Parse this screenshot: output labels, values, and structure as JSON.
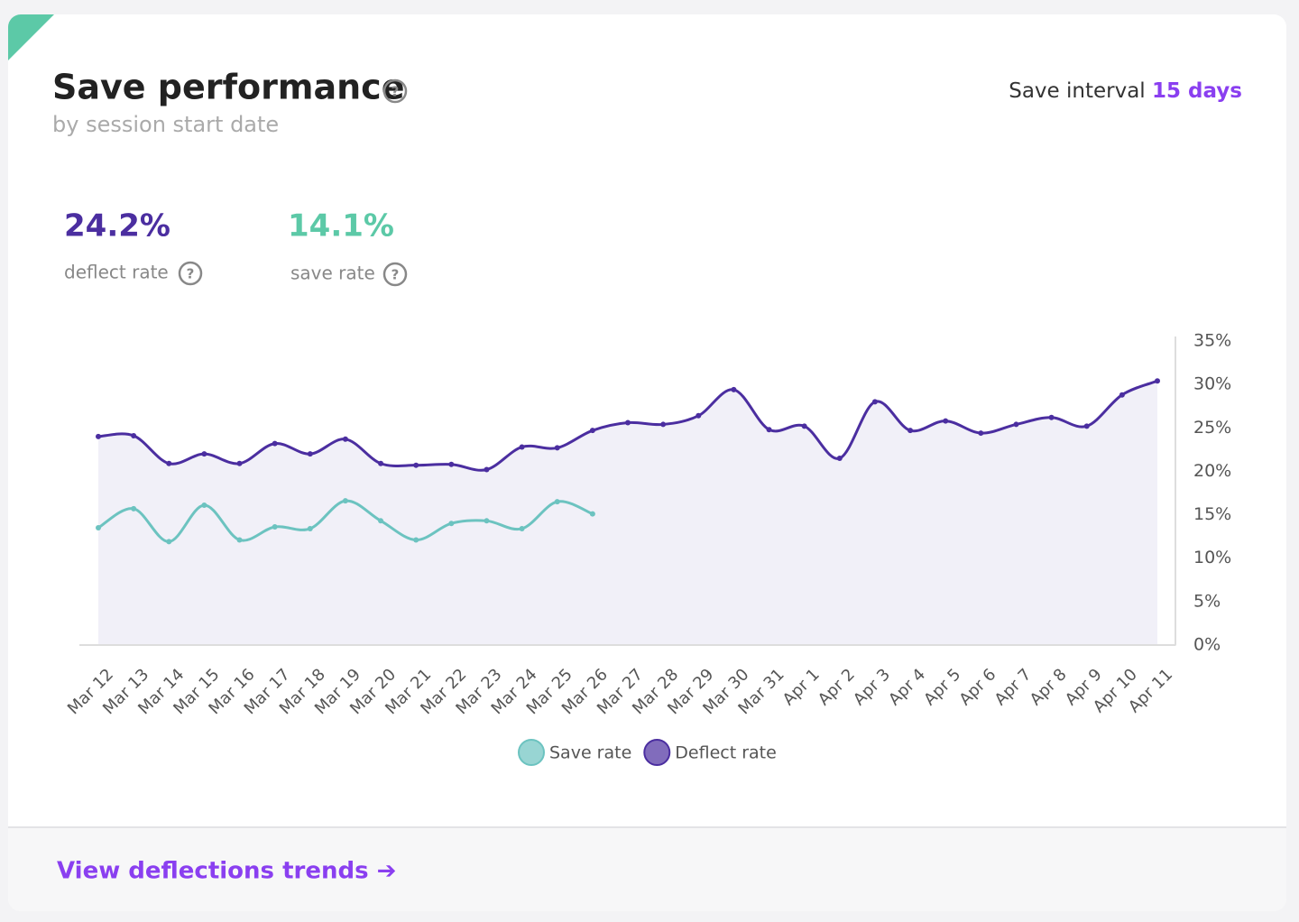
{
  "header": {
    "title": "Save performance",
    "subtitle": "by session start date",
    "interval_label": "Save interval",
    "interval_value": "15 days"
  },
  "stats": [
    {
      "value": "24.2%",
      "label": "deflect rate"
    },
    {
      "value": "14.1%",
      "label": "save rate"
    }
  ],
  "chart_data": {
    "type": "line",
    "categories": [
      "Mar 12",
      "Mar 13",
      "Mar 14",
      "Mar 15",
      "Mar 16",
      "Mar 17",
      "Mar 18",
      "Mar 19",
      "Mar 20",
      "Mar 21",
      "Mar 22",
      "Mar 23",
      "Mar 24",
      "Mar 25",
      "Mar 26",
      "Mar 27",
      "Mar 28",
      "Mar 29",
      "Mar 30",
      "Mar 31",
      "Apr 1",
      "Apr 2",
      "Apr 3",
      "Apr 4",
      "Apr 5",
      "Apr 6",
      "Apr 7",
      "Apr 8",
      "Apr 9",
      "Apr 10",
      "Apr 11"
    ],
    "series": [
      {
        "name": "Save rate",
        "color": "#6cc3c0",
        "values": [
          13.5,
          15.7,
          11.9,
          16.1,
          12.1,
          13.6,
          13.4,
          16.6,
          14.3,
          12.1,
          14.0,
          14.3,
          13.4,
          16.5,
          15.1,
          null,
          null,
          null,
          null,
          null,
          null,
          null,
          null,
          null,
          null,
          null,
          null,
          null,
          null,
          null,
          null
        ]
      },
      {
        "name": "Deflect rate",
        "color": "#4b2ea0",
        "values": [
          24.0,
          24.1,
          20.9,
          22.0,
          20.9,
          23.2,
          22.0,
          23.7,
          20.9,
          20.7,
          20.8,
          20.2,
          22.8,
          22.7,
          24.7,
          25.6,
          25.4,
          26.4,
          29.4,
          24.8,
          25.2,
          21.5,
          28.0,
          24.7,
          25.8,
          24.4,
          25.4,
          26.2,
          25.2,
          28.8,
          30.4
        ]
      }
    ],
    "ylim": [
      0,
      35
    ],
    "yticks": [
      {
        "value": 0,
        "label": "0%"
      },
      {
        "value": 5,
        "label": "5%"
      },
      {
        "value": 10,
        "label": "10%"
      },
      {
        "value": 15,
        "label": "15%"
      },
      {
        "value": 20,
        "label": "20%"
      },
      {
        "value": 25,
        "label": "25%"
      },
      {
        "value": 30,
        "label": "30%"
      },
      {
        "value": 35,
        "label": "35%"
      }
    ],
    "grid": false,
    "legend": "bottom"
  },
  "footer": {
    "link": "View deflections trends ➔"
  }
}
